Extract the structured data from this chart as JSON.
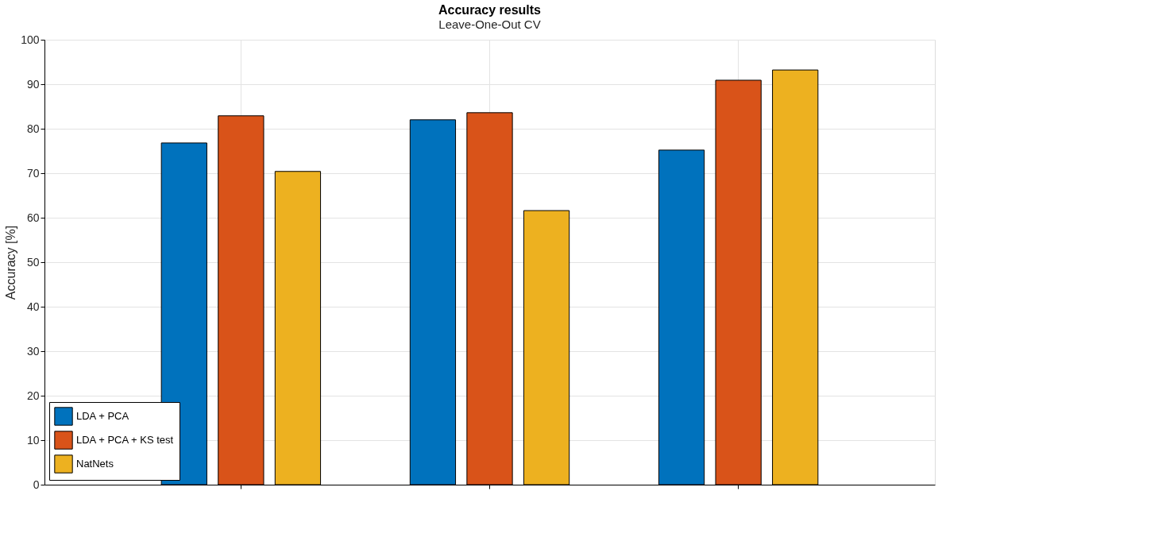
{
  "chart_data": {
    "type": "bar",
    "title": "Accuracy results",
    "subtitle": "Leave-One-Out CV",
    "ylabel": "Accuracy [%]",
    "categories": [
      null,
      null,
      null
    ],
    "series": [
      {
        "name": "LDA + PCA",
        "color": "#0072bd",
        "values": [
          76.8,
          82.0,
          75.2
        ]
      },
      {
        "name": "LDA + PCA + KS test",
        "color": "#d95319",
        "values": [
          82.9,
          83.6,
          90.9
        ]
      },
      {
        "name": "NatNets",
        "color": "#edb120",
        "values": [
          70.4,
          61.6,
          93.2
        ]
      }
    ],
    "ylim": [
      0,
      100
    ],
    "yticks": [
      0,
      10,
      20,
      30,
      40,
      50,
      60,
      70,
      80,
      90,
      100
    ],
    "grid": true,
    "legend": "bottom left"
  }
}
